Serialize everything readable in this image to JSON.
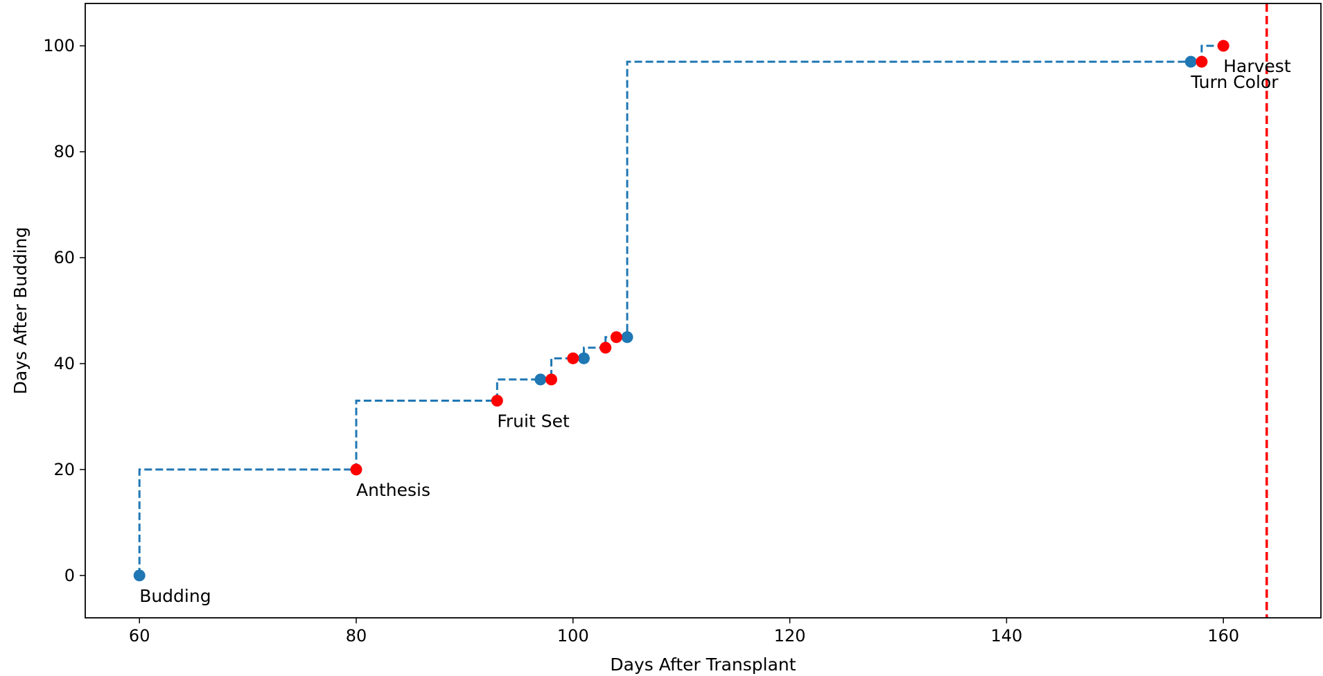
{
  "chart_data": {
    "type": "scatter",
    "xlabel": "Days After Transplant",
    "ylabel": "Days After Budding",
    "xlim": [
      55,
      169
    ],
    "ylim": [
      -8,
      108
    ],
    "xticks": [
      60,
      80,
      100,
      120,
      140,
      160
    ],
    "yticks": [
      0,
      20,
      40,
      60,
      80,
      100
    ],
    "grid": false,
    "step_line": {
      "color": "#1f77b4",
      "style": "dashed",
      "where": "pre",
      "points": [
        {
          "x": 60,
          "y": 0
        },
        {
          "x": 80,
          "y": 20
        },
        {
          "x": 93,
          "y": 33
        },
        {
          "x": 97,
          "y": 37
        },
        {
          "x": 98,
          "y": 37
        },
        {
          "x": 100,
          "y": 41
        },
        {
          "x": 101,
          "y": 41
        },
        {
          "x": 103,
          "y": 43
        },
        {
          "x": 104,
          "y": 45
        },
        {
          "x": 105,
          "y": 45
        },
        {
          "x": 157,
          "y": 97
        },
        {
          "x": 158,
          "y": 97
        },
        {
          "x": 160,
          "y": 100
        }
      ]
    },
    "series": [
      {
        "color": "#1f77b4",
        "points": [
          {
            "x": 60,
            "y": 0
          },
          {
            "x": 97,
            "y": 37
          },
          {
            "x": 101,
            "y": 41
          },
          {
            "x": 105,
            "y": 45
          },
          {
            "x": 157,
            "y": 97
          }
        ]
      },
      {
        "color": "#ff0000",
        "points": [
          {
            "x": 80,
            "y": 20
          },
          {
            "x": 93,
            "y": 33
          },
          {
            "x": 98,
            "y": 37
          },
          {
            "x": 100,
            "y": 41
          },
          {
            "x": 103,
            "y": 43
          },
          {
            "x": 104,
            "y": 45
          },
          {
            "x": 158,
            "y": 97
          },
          {
            "x": 160,
            "y": 100
          }
        ]
      }
    ],
    "annotations": [
      {
        "text": "Budding",
        "x": 60,
        "y": 0
      },
      {
        "text": "Anthesis",
        "x": 80,
        "y": 20
      },
      {
        "text": "Fruit Set",
        "x": 93,
        "y": 33
      },
      {
        "text": "Turn Color",
        "x": 157,
        "y": 97
      },
      {
        "text": "Harvest",
        "x": 160,
        "y": 100
      }
    ],
    "vline": {
      "x": 164,
      "color": "#ff0000",
      "style": "dashed"
    }
  }
}
